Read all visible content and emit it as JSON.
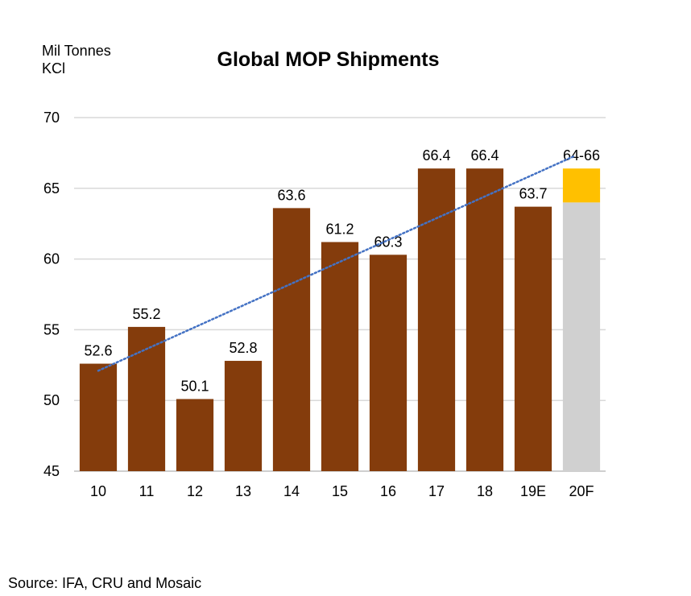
{
  "chart_data": {
    "type": "bar",
    "title": "Global MOP Shipments",
    "ylabel_lines": [
      "Mil Tonnes",
      "KCl"
    ],
    "xlabel": "",
    "categories": [
      "10",
      "11",
      "12",
      "13",
      "14",
      "15",
      "16",
      "17",
      "18",
      "19E",
      "20F"
    ],
    "values": [
      52.6,
      55.2,
      50.1,
      52.8,
      63.6,
      61.2,
      60.3,
      66.4,
      66.4,
      63.7,
      null
    ],
    "data_labels": [
      "52.6",
      "55.2",
      "50.1",
      "52.8",
      "63.6",
      "61.2",
      "60.3",
      "66.4",
      "66.4",
      "63.7",
      "64-66"
    ],
    "forecast": {
      "category": "20F",
      "low": 64,
      "high": 66.4,
      "label": "64-66"
    },
    "ylim": [
      45,
      70
    ],
    "yticks": [
      45,
      50,
      55,
      60,
      65,
      70
    ],
    "trendline": {
      "style": "dotted",
      "from": 52.1,
      "to": 67.3
    },
    "grid": true,
    "colors": {
      "bar": "#843C0C",
      "forecast_base": "#D0D0D0",
      "forecast_range": "#FFC000",
      "trend": "#4472C4",
      "grid": "#D9D9D9"
    }
  },
  "source": "Source: IFA, CRU and Mosaic"
}
